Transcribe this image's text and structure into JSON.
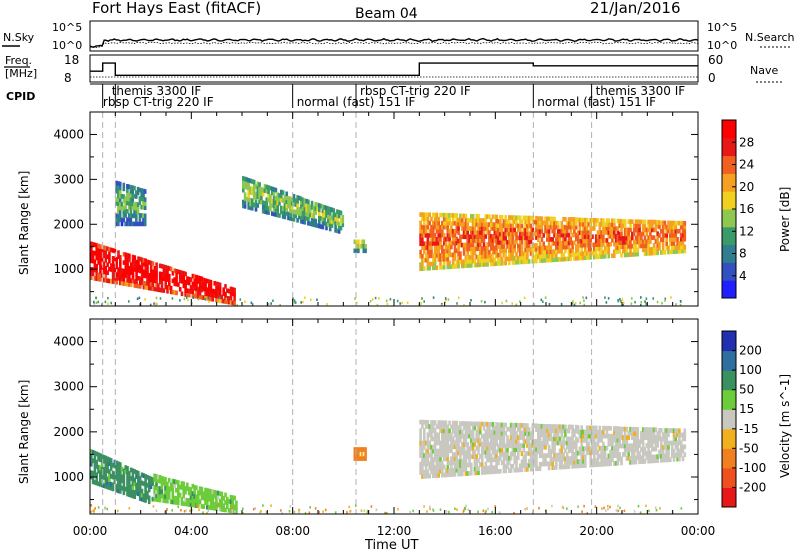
{
  "header": {
    "title": "Fort Hays East (fitACF)",
    "beam": "Beam 04",
    "date": "21/Jan/2016"
  },
  "left_labels": {
    "nsky": "N.Sky",
    "freq_top": "Freq.",
    "freq_unit": "[MHz]",
    "cpid": "CPID"
  },
  "right_labels": {
    "nsearch": "N.Search",
    "nave": "Nave"
  },
  "nsky_ticks": {
    "top": "10^5",
    "bottom": "10^0"
  },
  "freq_ticks": {
    "top": "18",
    "bottom": "8"
  },
  "nave_ticks": {
    "top": "60",
    "bottom": "0"
  },
  "cpid_modes": [
    {
      "label": "themis 3300 IF",
      "row": 1,
      "start_h": 0.7
    },
    {
      "label": "rbsp CT-trig 220 IF",
      "row": 2,
      "start_h": 0.35
    },
    {
      "label": "normal (fast) 151 IF",
      "row": 2,
      "start_h": 8.0
    },
    {
      "label": "rbsp CT-trig 220 IF",
      "row": 1,
      "start_h": 10.5
    },
    {
      "label": "normal (fast) 151 IF",
      "row": 2,
      "start_h": 17.5
    },
    {
      "label": "themis 3300 IF",
      "row": 1,
      "start_h": 19.8
    }
  ],
  "cpid_boundaries_h": [
    0.5,
    1.0,
    8.0,
    10.5,
    17.5,
    19.8
  ],
  "x_axis": {
    "label": "Time UT",
    "ticks": [
      "00:00",
      "04:00",
      "08:00",
      "12:00",
      "16:00",
      "20:00",
      "00:00"
    ]
  },
  "power_panel": {
    "ylabel": "Slant Range [km]",
    "yticks": [
      "1000",
      "2000",
      "3000",
      "4000"
    ],
    "colorbar_label": "Power [dB]",
    "colorbar_ticks": [
      "4",
      "8",
      "12",
      "16",
      "20",
      "24",
      "28"
    ],
    "colors": [
      "#1f1fff",
      "#3350c0",
      "#2f7d8f",
      "#3a9a6a",
      "#8fc850",
      "#f0d020",
      "#f5a020",
      "#f06020",
      "#e81818",
      "#ff0000"
    ]
  },
  "velocity_panel": {
    "ylabel": "Slant Range [km]",
    "yticks": [
      "1000",
      "2000",
      "3000",
      "4000"
    ],
    "colorbar_label": "Velocity [m s^-1]",
    "colorbar_ticks": [
      "200",
      "100",
      "50",
      "15",
      "-15",
      "-50",
      "-100",
      "-200"
    ],
    "colors": [
      "#2030b0",
      "#2f6fa0",
      "#3a9060",
      "#6ccc3a",
      "#c8c8c0",
      "#f0b020",
      "#f08020",
      "#f05020",
      "#e81818"
    ]
  },
  "chart_data": {
    "type": "heatmap",
    "x_range_hours": [
      0,
      24
    ],
    "y_range_km": [
      180,
      4500
    ],
    "frequency_MHz": [
      {
        "from_h": 0.0,
        "to_h": 0.5,
        "value": 12
      },
      {
        "from_h": 0.5,
        "to_h": 1.0,
        "value": 15
      },
      {
        "from_h": 1.0,
        "to_h": 13.0,
        "value": 10.5
      },
      {
        "from_h": 13.0,
        "to_h": 17.5,
        "value": 15
      },
      {
        "from_h": 17.5,
        "to_h": 24.0,
        "value": 14
      }
    ],
    "power_regions": [
      {
        "t0": 0.0,
        "t1": 5.8,
        "r0_start": 1650,
        "r0_end": 600,
        "r1_start": 800,
        "r1_end": 220,
        "dB": 26
      },
      {
        "t0": 13.0,
        "t1": 23.5,
        "r0_start": 2300,
        "r0_end": 2100,
        "r1_start": 1000,
        "r1_end": 1400,
        "dB": 18
      },
      {
        "t0": 6.0,
        "t1": 10.0,
        "r0_start": 3100,
        "r0_end": 2300,
        "r1_start": 2400,
        "r1_end": 1800,
        "dB": 8
      },
      {
        "t0": 10.4,
        "t1": 10.9,
        "r0_start": 1700,
        "r0_end": 1700,
        "r1_start": 1400,
        "r1_end": 1400,
        "dB": 10
      },
      {
        "t0": 1.0,
        "t1": 2.2,
        "r0_start": 3000,
        "r0_end": 2800,
        "r1_start": 2000,
        "r1_end": 2000,
        "dB": 6
      }
    ],
    "velocity_regions": [
      {
        "t0": 0.0,
        "t1": 2.5,
        "r0_start": 1650,
        "r0_end": 1000,
        "r1_start": 900,
        "r1_end": 400,
        "vel": 50
      },
      {
        "t0": 2.5,
        "t1": 5.8,
        "r0_start": 1100,
        "r0_end": 600,
        "r1_start": 500,
        "r1_end": 220,
        "vel": 20
      },
      {
        "t0": 13.0,
        "t1": 23.5,
        "r0_start": 2300,
        "r0_end": 2100,
        "r1_start": 1000,
        "r1_end": 1400,
        "vel": 0
      },
      {
        "t0": 10.4,
        "t1": 10.9,
        "r0_start": 1700,
        "r0_end": 1700,
        "r1_start": 1400,
        "r1_end": 1400,
        "vel": -80
      }
    ]
  }
}
